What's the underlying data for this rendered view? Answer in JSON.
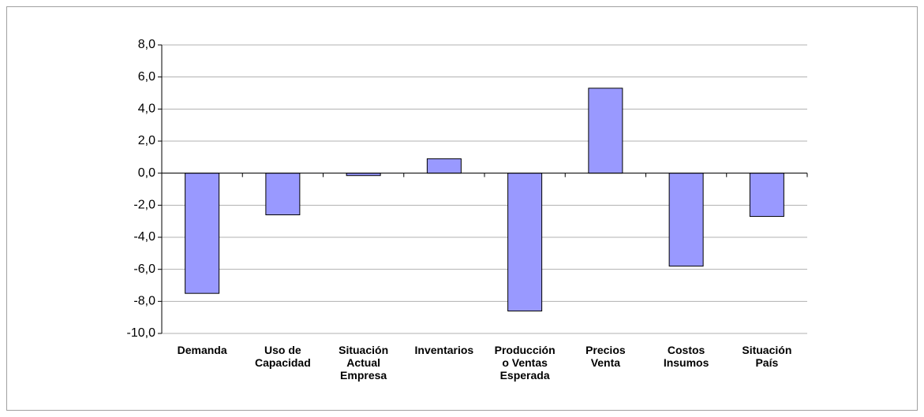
{
  "chart_data": {
    "type": "bar",
    "categories": [
      "Demanda",
      "Uso de\nCapacidad",
      "Situación\nActual\nEmpresa",
      "Inventarios",
      "Producción\no Ventas\nEsperada",
      "Precios\nVenta",
      "Costos\nInsumos",
      "Situación\nPaís"
    ],
    "values": [
      -7.5,
      -2.6,
      -0.15,
      0.9,
      -8.6,
      5.3,
      -5.8,
      -2.7
    ],
    "color": "#9999ff",
    "ylim": [
      -10,
      8
    ],
    "yticks": [
      {
        "value": -10,
        "label": "-10,0"
      },
      {
        "value": -8,
        "label": "-8,0"
      },
      {
        "value": -6,
        "label": "-6,0"
      },
      {
        "value": -4,
        "label": "-4,0"
      },
      {
        "value": -2,
        "label": "-2,0"
      },
      {
        "value": 0,
        "label": "0,0"
      },
      {
        "value": 2,
        "label": "2,0"
      },
      {
        "value": 4,
        "label": "4,0"
      },
      {
        "value": 6,
        "label": "6,0"
      },
      {
        "value": 8,
        "label": "8,0"
      }
    ],
    "grid": true
  }
}
